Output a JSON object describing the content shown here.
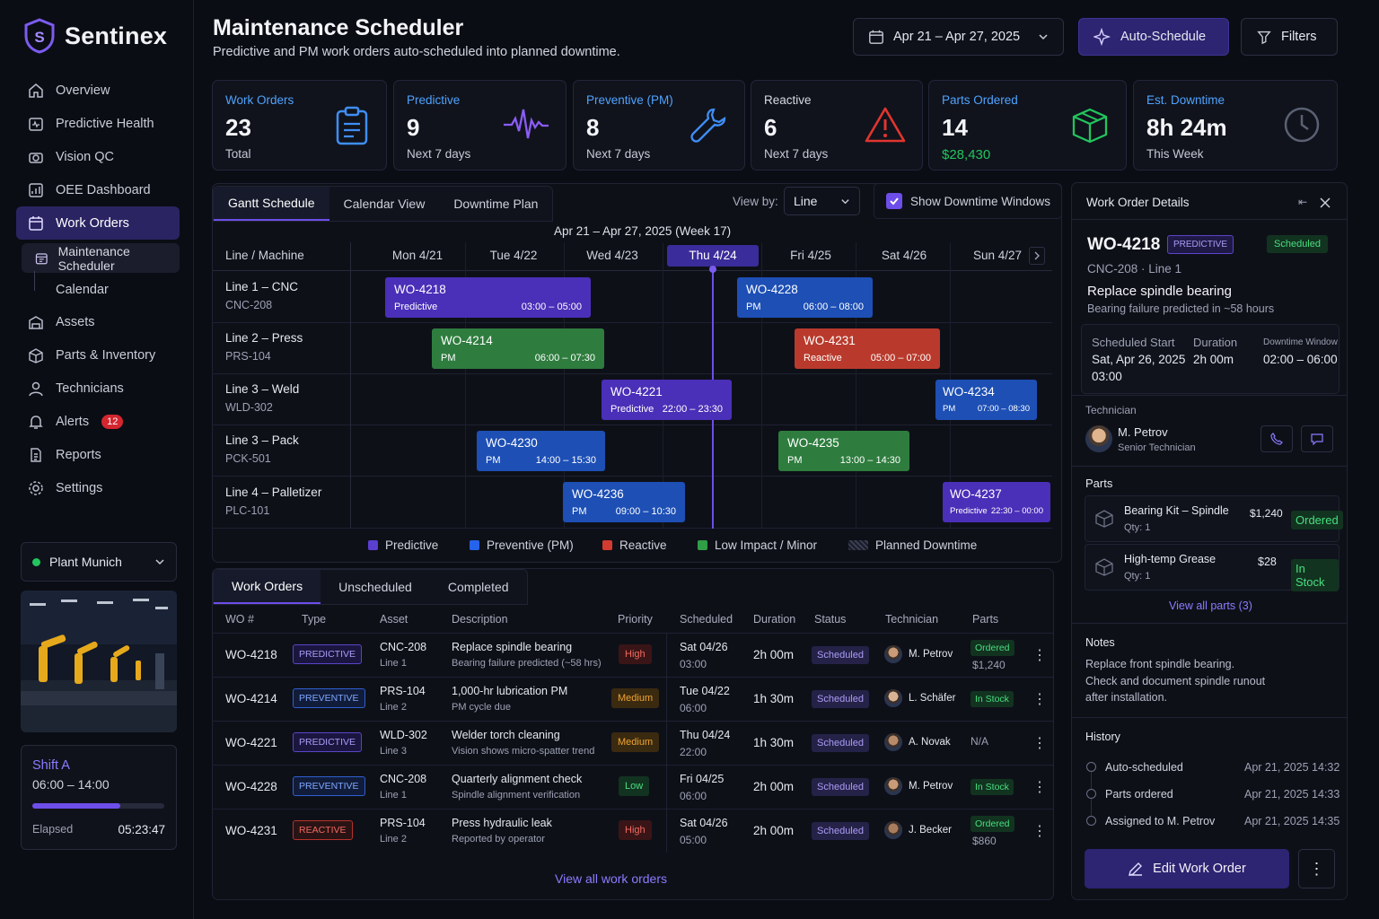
{
  "app": {
    "name": "Sentinex"
  },
  "sidebar": {
    "items": [
      {
        "label": "Overview"
      },
      {
        "label": "Predictive Health"
      },
      {
        "label": "Vision QC"
      },
      {
        "label": "OEE Dashboard"
      },
      {
        "label": "Work Orders"
      },
      {
        "label": "Maintenance Scheduler"
      },
      {
        "label": "Calendar"
      },
      {
        "label": "Assets"
      },
      {
        "label": "Parts & Inventory"
      },
      {
        "label": "Technicians"
      },
      {
        "label": "Alerts",
        "badge": "12"
      },
      {
        "label": "Reports"
      },
      {
        "label": "Settings"
      }
    ],
    "plant": "Plant Munich",
    "shift": {
      "name": "Shift A",
      "hours": "06:00 – 14:00",
      "elapsed_label": "Elapsed",
      "elapsed": "05:23:47",
      "progress": 0.67
    }
  },
  "header": {
    "title": "Maintenance Scheduler",
    "subtitle": "Predictive and PM work orders auto-scheduled into planned downtime.",
    "date_range": "Apr 21 – Apr 27, 2025",
    "auto_schedule": "Auto-Schedule",
    "filters": "Filters"
  },
  "kpis": [
    {
      "label": "Work Orders",
      "value": "23",
      "sub": "Total",
      "color": "#4fa3ff",
      "icon": "clipboard-icon"
    },
    {
      "label": "Predictive",
      "value": "9",
      "sub": "Next 7 days",
      "color": "#4fa3ff",
      "icon": "pulse-icon"
    },
    {
      "label": "Preventive (PM)",
      "value": "8",
      "sub": "Next 7 days",
      "color": "#4fa3ff",
      "icon": "wrench-icon"
    },
    {
      "label": "Reactive",
      "value": "6",
      "sub": "Next 7 days",
      "color": "#d9dbe4",
      "icon": "warning-icon"
    },
    {
      "label": "Parts Ordered",
      "value": "14",
      "sub": "$28,430",
      "color": "#4fa3ff",
      "icon": "box-icon"
    },
    {
      "label": "Est. Downtime",
      "value": "8h 24m",
      "sub": "This Week",
      "color": "#4fa3ff",
      "icon": "clock-icon"
    }
  ],
  "schedule": {
    "tabs": [
      "Gantt Schedule",
      "Calendar View",
      "Downtime Plan"
    ],
    "view_by_label": "View by:",
    "view_by_value": "Line",
    "show_downtime": "Show Downtime Windows",
    "week": "Apr 21 – Apr 27, 2025 (Week 17)",
    "line_header": "Line / Machine",
    "days": [
      "Mon 4/21",
      "Tue 4/22",
      "Wed 4/23",
      "Thu 4/24",
      "Fri 4/25",
      "Sat 4/26",
      "Sun 4/27"
    ],
    "rows": [
      {
        "line": "Line 1 – CNC",
        "machine": "CNC-208"
      },
      {
        "line": "Line 2 – Press",
        "machine": "PRS-104"
      },
      {
        "line": "Line 3 – Weld",
        "machine": "WLD-302"
      },
      {
        "line": "Line 3 – Pack",
        "machine": "PCK-501"
      },
      {
        "line": "Line 4 – Palletizer",
        "machine": "PLC-101"
      }
    ],
    "bars": [
      {
        "id": "WO-4218",
        "type": "Predictive",
        "time": "03:00 – 05:00"
      },
      {
        "id": "WO-4228",
        "type": "PM",
        "time": "06:00 – 08:00"
      },
      {
        "id": "WO-4214",
        "type": "PM",
        "time": "06:00 – 07:30"
      },
      {
        "id": "WO-4231",
        "type": "Reactive",
        "time": "05:00 – 07:00"
      },
      {
        "id": "WO-4221",
        "type": "Predictive",
        "time": "22:00 – 23:30"
      },
      {
        "id": "WO-4234",
        "type": "PM",
        "time": "07:00 – 08:30"
      },
      {
        "id": "WO-4230",
        "type": "PM",
        "time": "14:00 – 15:30"
      },
      {
        "id": "WO-4235",
        "type": "PM",
        "time": "13:00 – 14:30"
      },
      {
        "id": "WO-4236",
        "type": "PM",
        "time": "09:00 – 10:30"
      },
      {
        "id": "WO-4237",
        "type": "Predictive",
        "time": "22:30 – 00:00"
      }
    ],
    "legend": [
      "Predictive",
      "Preventive (PM)",
      "Reactive",
      "Low Impact / Minor",
      "Planned Downtime"
    ]
  },
  "orders": {
    "tabs": [
      "Work Orders",
      "Unscheduled",
      "Completed"
    ],
    "columns": [
      "WO #",
      "Type",
      "Asset",
      "Description",
      "Priority",
      "Scheduled",
      "Duration",
      "Status",
      "Technician",
      "Parts"
    ],
    "rows": [
      {
        "wo": "WO-4218",
        "type": "PREDICTIVE",
        "asset": "CNC-208",
        "line": "Line 1",
        "desc": "Replace spindle bearing",
        "desc_sub": "Bearing failure predicted (~58 hrs)",
        "priority": "High",
        "date": "Sat 04/26",
        "time": "03:00",
        "duration": "2h 00m",
        "status": "Scheduled",
        "tech": "M. Petrov",
        "parts": "Ordered",
        "parts_sub": "$1,240"
      },
      {
        "wo": "WO-4214",
        "type": "PREVENTIVE",
        "asset": "PRS-104",
        "line": "Line 2",
        "desc": "1,000-hr lubrication PM",
        "desc_sub": "PM cycle due",
        "priority": "Medium",
        "date": "Tue 04/22",
        "time": "06:00",
        "duration": "1h 30m",
        "status": "Scheduled",
        "tech": "L. Schäfer",
        "parts": "In Stock",
        "parts_sub": ""
      },
      {
        "wo": "WO-4221",
        "type": "PREDICTIVE",
        "asset": "WLD-302",
        "line": "Line 3",
        "desc": "Welder torch cleaning",
        "desc_sub": "Vision shows micro-spatter trend",
        "priority": "Medium",
        "date": "Thu 04/24",
        "time": "22:00",
        "duration": "1h 30m",
        "status": "Scheduled",
        "tech": "A. Novak",
        "parts": "N/A",
        "parts_sub": ""
      },
      {
        "wo": "WO-4228",
        "type": "PREVENTIVE",
        "asset": "CNC-208",
        "line": "Line 1",
        "desc": "Quarterly alignment check",
        "desc_sub": "Spindle alignment verification",
        "priority": "Low",
        "date": "Fri 04/25",
        "time": "06:00",
        "duration": "2h 00m",
        "status": "Scheduled",
        "tech": "M. Petrov",
        "parts": "In Stock",
        "parts_sub": ""
      },
      {
        "wo": "WO-4231",
        "type": "REACTIVE",
        "asset": "PRS-104",
        "line": "Line 2",
        "desc": "Press hydraulic leak",
        "desc_sub": "Reported by operator",
        "priority": "High",
        "date": "Sat 04/26",
        "time": "05:00",
        "duration": "2h 00m",
        "status": "Scheduled",
        "tech": "J. Becker",
        "parts": "Ordered",
        "parts_sub": "$860"
      }
    ],
    "view_all": "View all work orders"
  },
  "details": {
    "title": "Work Order Details",
    "wo": "WO-4218",
    "type": "PREDICTIVE",
    "status": "Scheduled",
    "asset_line": "CNC-208 · Line 1",
    "task": "Replace spindle bearing",
    "task_sub": "Bearing failure predicted in ~58 hours",
    "start_label": "Scheduled Start",
    "start_value": "Sat, Apr 26, 2025",
    "start_time": "03:00",
    "duration_label": "Duration",
    "duration_value": "2h 00m",
    "window_label": "Downtime Window",
    "window_value": "02:00 – 06:00",
    "tech_label": "Technician",
    "tech_name": "M. Petrov",
    "tech_role": "Senior Technician",
    "parts_label": "Parts",
    "parts": [
      {
        "name": "Bearing Kit – Spindle",
        "qty": "Qty: 1",
        "price": "$1,240",
        "status": "Ordered"
      },
      {
        "name": "High-temp Grease",
        "qty": "Qty: 1",
        "price": "$28",
        "status": "In Stock"
      }
    ],
    "view_parts": "View all parts (3)",
    "notes_label": "Notes",
    "notes": [
      "Replace front spindle bearing.",
      "Check and document spindle runout",
      "after installation."
    ],
    "history_label": "History",
    "history": [
      {
        "event": "Auto-scheduled",
        "time": "Apr 21, 2025 14:32"
      },
      {
        "event": "Parts ordered",
        "time": "Apr 21, 2025 14:33"
      },
      {
        "event": "Assigned to M. Petrov",
        "time": "Apr 21, 2025 14:35"
      }
    ],
    "edit": "Edit Work Order"
  },
  "colors": {
    "predictive": "#4a2fb8",
    "pm": "#1d4fb5",
    "reactive": "#b93a2c",
    "minor": "#2e7d3e",
    "accent": "#6d4ee8"
  }
}
